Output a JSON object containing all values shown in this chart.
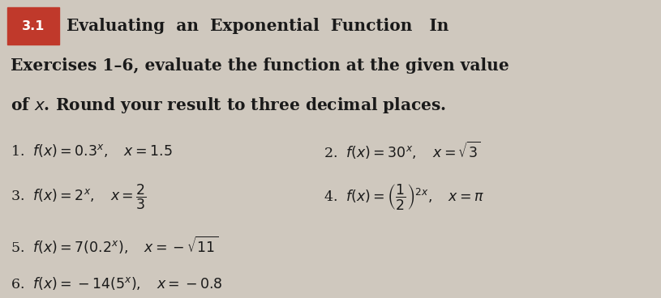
{
  "background_color": "#cfc8be",
  "box_color": "#c0392b",
  "box_text": "3.1",
  "font_size_title": 14.5,
  "font_size_ex": 12.5
}
